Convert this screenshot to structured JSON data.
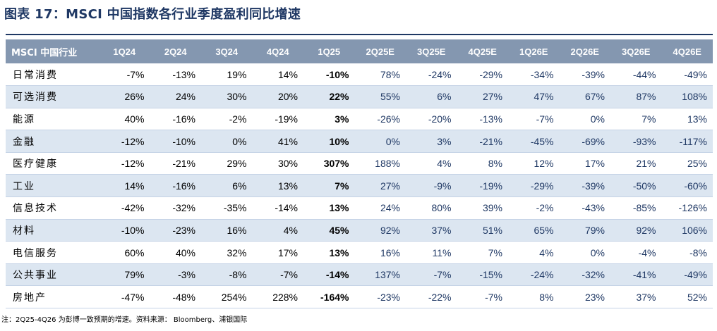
{
  "title": "图表 17：MSCI 中国指数各行业季度盈利同比增速",
  "header": [
    "MSCI 中国行业",
    "1Q24",
    "2Q24",
    "3Q24",
    "4Q24",
    "1Q25",
    "2Q25E",
    "3Q25E",
    "4Q25E",
    "1Q26E",
    "2Q26E",
    "3Q26E",
    "4Q26E"
  ],
  "rows": [
    [
      "日常消费",
      "-7%",
      "-13%",
      "19%",
      "14%",
      "-10%",
      "78%",
      "-24%",
      "-29%",
      "-34%",
      "-39%",
      "-44%",
      "-49%"
    ],
    [
      "可选消费",
      "26%",
      "24%",
      "30%",
      "20%",
      "22%",
      "55%",
      "6%",
      "27%",
      "47%",
      "67%",
      "87%",
      "108%"
    ],
    [
      "能源",
      "40%",
      "-16%",
      "-2%",
      "-19%",
      "3%",
      "-26%",
      "-20%",
      "-13%",
      "-7%",
      "0%",
      "7%",
      "13%"
    ],
    [
      "金融",
      "-12%",
      "-10%",
      "0%",
      "41%",
      "10%",
      "0%",
      "3%",
      "-21%",
      "-45%",
      "-69%",
      "-93%",
      "-117%"
    ],
    [
      "医疗健康",
      "-12%",
      "-21%",
      "29%",
      "30%",
      "307%",
      "188%",
      "4%",
      "8%",
      "12%",
      "17%",
      "21%",
      "25%"
    ],
    [
      "工业",
      "14%",
      "-16%",
      "6%",
      "13%",
      "7%",
      "27%",
      "-9%",
      "-19%",
      "-29%",
      "-39%",
      "-50%",
      "-60%"
    ],
    [
      "信息技术",
      "-42%",
      "-32%",
      "-35%",
      "-14%",
      "13%",
      "24%",
      "80%",
      "39%",
      "-2%",
      "-43%",
      "-85%",
      "-126%"
    ],
    [
      "材料",
      "-10%",
      "-23%",
      "16%",
      "4%",
      "45%",
      "92%",
      "37%",
      "51%",
      "65%",
      "79%",
      "92%",
      "106%"
    ],
    [
      "电信服务",
      "60%",
      "40%",
      "32%",
      "17%",
      "13%",
      "16%",
      "11%",
      "7%",
      "4%",
      "0%",
      "-4%",
      "-8%"
    ],
    [
      "公共事业",
      "79%",
      "-3%",
      "-8%",
      "-7%",
      "-14%",
      "137%",
      "-7%",
      "-15%",
      "-24%",
      "-32%",
      "-41%",
      "-49%"
    ],
    [
      "房地产",
      "-47%",
      "-48%",
      "254%",
      "228%",
      "-164%",
      "-23%",
      "-22%",
      "-7%",
      "8%",
      "23%",
      "37%",
      "52%"
    ]
  ],
  "note": "注：2Q25-4Q26 为彭博一致预期的增速。资料来源： Bloomberg、浦银国际"
}
